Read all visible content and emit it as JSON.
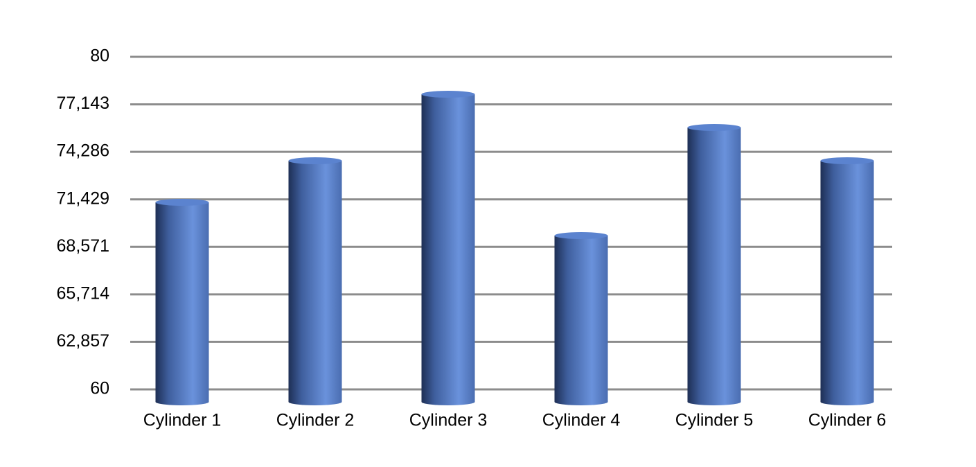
{
  "chart_data": {
    "type": "bar",
    "style": "cylinder",
    "categories": [
      "Cylinder 1",
      "Cylinder 2",
      "Cylinder 3",
      "Cylinder 4",
      "Cylinder 5",
      "Cylinder 6"
    ],
    "values": [
      72,
      74.5,
      78.5,
      70,
      76.5,
      74.5
    ],
    "color": "#5b83cf",
    "ylim": [
      60,
      80
    ],
    "yticks": [
      60,
      {
        "value": 62.857,
        "label": "62,857"
      },
      {
        "value": 65.714,
        "label": "65,714"
      },
      {
        "value": 68.571,
        "label": "68,571"
      },
      {
        "value": 71.429,
        "label": "71,429"
      },
      {
        "value": 74.286,
        "label": "74,286"
      },
      {
        "value": 77.143,
        "label": "77,143"
      },
      80
    ],
    "grid": true
  }
}
